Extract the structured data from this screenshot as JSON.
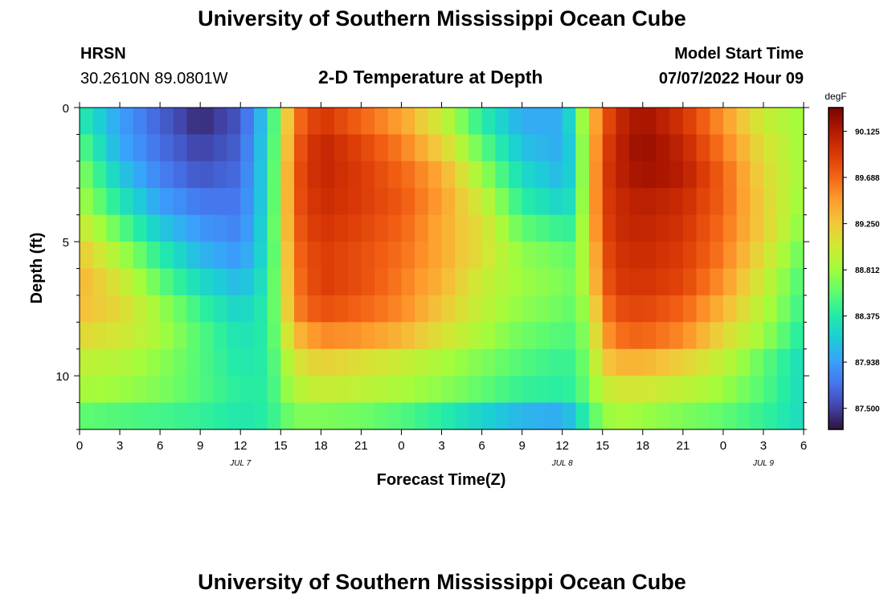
{
  "header": {
    "title": "University of Southern Mississippi Ocean Cube",
    "station": "HRSN",
    "coords": "30.2610N  89.0801W",
    "plot_title": "2-D Temperature at Depth",
    "model_start_label": "Model Start Time",
    "model_start_value": "07/07/2022 Hour 09",
    "footer_title": "University of Southern Mississippi Ocean Cube"
  },
  "colors": {
    "scale": [
      "#30123b",
      "#4145ab",
      "#4675ed",
      "#39a2fc",
      "#1bcfd4",
      "#24eca6",
      "#61fc6c",
      "#a4fc3b",
      "#d1e834",
      "#f3c63a",
      "#fe9b2d",
      "#f36315",
      "#d93806",
      "#b11901",
      "#7a0403"
    ]
  },
  "chart_data": {
    "type": "heatmap",
    "title": "2-D Temperature at Depth",
    "xlabel": "Forecast Time(Z)",
    "ylabel": "Depth (ft)",
    "x_ticks": [
      "0",
      "3",
      "6",
      "9",
      "12",
      "15",
      "18",
      "21",
      "0",
      "3",
      "6",
      "9",
      "12",
      "15",
      "18",
      "21",
      "0",
      "3",
      "6"
    ],
    "date_labels": [
      {
        "text": "JUL 7",
        "hour": 12
      },
      {
        "text": "JUL 8",
        "hour": 36
      },
      {
        "text": "JUL 9",
        "hour": 51
      }
    ],
    "x_range_hours": [
      0,
      54
    ],
    "y_ticks": [
      "0",
      "5",
      "10"
    ],
    "y_tick_values": [
      0,
      5,
      10
    ],
    "y_range_ft": [
      0,
      12
    ],
    "colorbar": {
      "unit": "degF",
      "ticks": [
        "90.125",
        "89.688",
        "89.250",
        "88.812",
        "88.375",
        "87.938",
        "87.500"
      ],
      "tick_values": [
        90.125,
        89.688,
        89.25,
        88.812,
        88.375,
        87.938,
        87.5
      ],
      "range": [
        87.3,
        90.35
      ]
    },
    "grid": {
      "depths_ft": [
        0.5,
        1.5,
        2.5,
        3.5,
        4.5,
        5.5,
        6.5,
        7.5,
        8.5,
        9.5,
        10.5,
        11.5
      ],
      "description": "temperature (degF) sampled hourly over 0-54 h forecast at each depth level",
      "anchor_hours": [
        0,
        3,
        6,
        9,
        12,
        14,
        15,
        16,
        18,
        21,
        24,
        27,
        30,
        33,
        36,
        37,
        38,
        39,
        40,
        42,
        45,
        48,
        51,
        54
      ],
      "values": [
        [
          88.4,
          87.95,
          87.65,
          87.4,
          87.6,
          88.2,
          88.9,
          89.6,
          89.95,
          89.7,
          89.45,
          89.0,
          88.4,
          88.0,
          88.0,
          88.4,
          89.2,
          89.7,
          90.0,
          90.2,
          89.95,
          89.5,
          89.0,
          88.8
        ],
        [
          88.6,
          88.0,
          87.72,
          87.5,
          87.65,
          88.25,
          88.9,
          89.7,
          90.05,
          89.85,
          89.6,
          89.2,
          88.6,
          88.1,
          88.0,
          88.3,
          89.2,
          89.8,
          90.05,
          90.25,
          90.05,
          89.6,
          89.1,
          88.8
        ],
        [
          88.75,
          88.15,
          87.8,
          87.6,
          87.7,
          88.25,
          88.95,
          89.75,
          90.05,
          89.9,
          89.7,
          89.4,
          88.8,
          88.25,
          88.05,
          88.3,
          89.2,
          89.85,
          90.05,
          90.2,
          90.1,
          89.7,
          89.15,
          88.8
        ],
        [
          88.85,
          88.35,
          87.95,
          87.75,
          87.75,
          88.25,
          88.95,
          89.75,
          90.0,
          89.9,
          89.75,
          89.45,
          89.0,
          88.4,
          88.2,
          88.35,
          89.2,
          89.85,
          90.0,
          90.1,
          90.0,
          89.7,
          89.2,
          88.75
        ],
        [
          89.05,
          88.6,
          88.15,
          87.9,
          87.8,
          88.3,
          88.95,
          89.7,
          89.95,
          89.85,
          89.7,
          89.4,
          89.1,
          88.6,
          88.45,
          88.45,
          89.2,
          89.8,
          90.0,
          90.05,
          89.95,
          89.65,
          89.2,
          88.7
        ],
        [
          89.25,
          88.85,
          88.4,
          88.05,
          87.9,
          88.3,
          88.9,
          89.65,
          89.9,
          89.8,
          89.65,
          89.4,
          89.1,
          88.75,
          88.65,
          88.6,
          89.1,
          89.75,
          89.95,
          90.0,
          89.9,
          89.6,
          89.1,
          88.6
        ],
        [
          89.35,
          89.05,
          88.6,
          88.25,
          88.05,
          88.35,
          88.9,
          89.6,
          89.9,
          89.8,
          89.6,
          89.35,
          89.0,
          88.8,
          88.7,
          88.65,
          89.05,
          89.7,
          89.9,
          89.95,
          89.85,
          89.5,
          89.0,
          88.5
        ],
        [
          89.3,
          89.15,
          88.8,
          88.45,
          88.2,
          88.4,
          88.85,
          89.55,
          89.8,
          89.7,
          89.55,
          89.25,
          88.95,
          88.75,
          88.65,
          88.6,
          88.95,
          89.55,
          89.8,
          89.85,
          89.7,
          89.35,
          88.9,
          88.45
        ],
        [
          89.15,
          89.05,
          88.85,
          88.55,
          88.3,
          88.4,
          88.8,
          89.3,
          89.55,
          89.5,
          89.35,
          89.1,
          88.85,
          88.65,
          88.55,
          88.55,
          88.85,
          89.4,
          89.65,
          89.7,
          89.55,
          89.15,
          88.8,
          88.35
        ],
        [
          88.95,
          88.9,
          88.75,
          88.55,
          88.35,
          88.4,
          88.7,
          89.05,
          89.2,
          89.1,
          89.0,
          88.85,
          88.7,
          88.55,
          88.45,
          88.5,
          88.75,
          89.2,
          89.35,
          89.35,
          89.2,
          88.95,
          88.6,
          88.25
        ],
        [
          88.85,
          88.8,
          88.7,
          88.55,
          88.4,
          88.4,
          88.65,
          88.9,
          89.0,
          88.95,
          88.85,
          88.75,
          88.6,
          88.45,
          88.4,
          88.45,
          88.7,
          88.95,
          89.05,
          89.05,
          88.95,
          88.8,
          88.55,
          88.25
        ],
        [
          88.6,
          88.55,
          88.5,
          88.45,
          88.35,
          88.4,
          88.55,
          88.7,
          88.7,
          88.65,
          88.55,
          88.4,
          88.2,
          88.05,
          88.0,
          88.2,
          88.5,
          88.75,
          88.85,
          88.8,
          88.7,
          88.6,
          88.45,
          88.25
        ]
      ]
    }
  }
}
